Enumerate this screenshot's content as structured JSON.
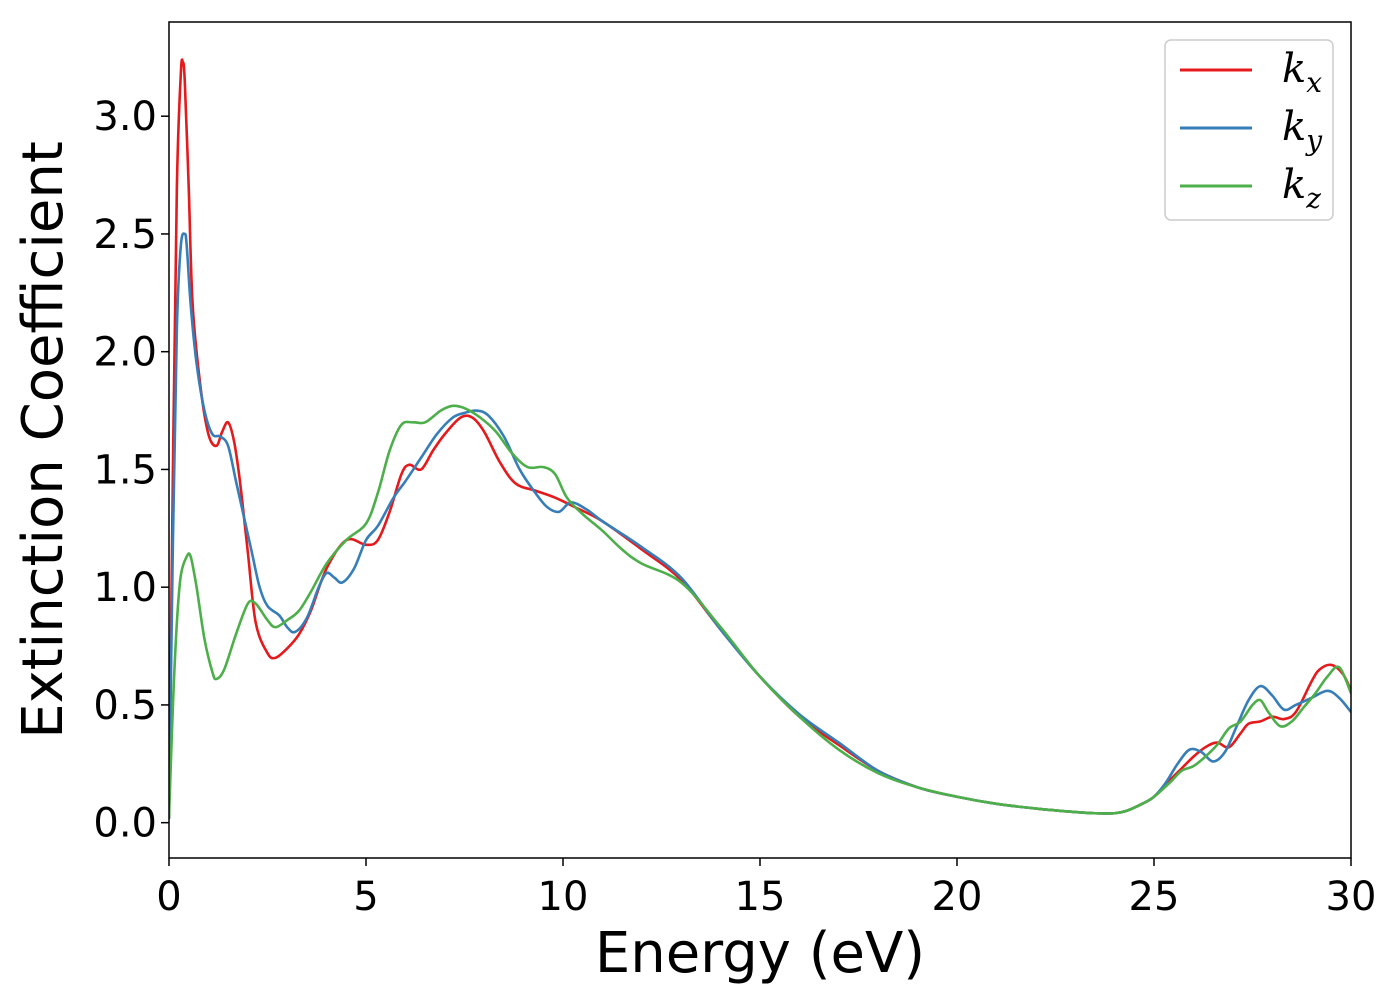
{
  "chart_data": {
    "type": "line",
    "xlabel": "Energy (eV)",
    "ylabel": "Extinction Coefficient",
    "xlim": [
      0,
      30
    ],
    "ylim": [
      -0.15,
      3.4
    ],
    "xticks": [
      0,
      5,
      10,
      15,
      20,
      25,
      30
    ],
    "xtick_labels": [
      "0",
      "5",
      "10",
      "15",
      "20",
      "25",
      "30"
    ],
    "yticks": [
      0.0,
      0.5,
      1.0,
      1.5,
      2.0,
      2.5,
      3.0
    ],
    "ytick_labels": [
      "0.0",
      "0.5",
      "1.0",
      "1.5",
      "2.0",
      "2.5",
      "3.0"
    ],
    "grid": false,
    "legend": "top-right",
    "series": [
      {
        "name": "k",
        "subscript": "x",
        "color": "#e41a1c",
        "x": [
          0,
          0.1,
          0.2,
          0.3,
          0.35,
          0.4,
          0.5,
          0.6,
          0.8,
          1.0,
          1.2,
          1.35,
          1.5,
          1.65,
          1.8,
          2.0,
          2.2,
          2.5,
          2.7,
          3.0,
          3.3,
          3.6,
          4.0,
          4.5,
          5.0,
          5.3,
          5.6,
          5.9,
          6.1,
          6.4,
          6.7,
          7.0,
          7.4,
          7.7,
          8.0,
          8.4,
          8.8,
          9.3,
          9.8,
          10.3,
          11.0,
          12.0,
          13.0,
          14.0,
          15.0,
          16.0,
          17.0,
          18.0,
          19.0,
          20.0,
          21.0,
          22.0,
          23.0,
          23.5,
          24.0,
          24.3,
          24.7,
          25.0,
          25.4,
          25.7,
          26.0,
          26.3,
          26.6,
          26.9,
          27.2,
          27.4,
          27.7,
          28.0,
          28.3,
          28.6,
          29.0,
          29.2,
          29.5,
          29.8,
          30.0
        ],
        "values": [
          0.02,
          1.5,
          2.7,
          3.18,
          3.23,
          3.15,
          2.7,
          2.2,
          1.85,
          1.65,
          1.6,
          1.66,
          1.7,
          1.62,
          1.45,
          1.15,
          0.85,
          0.72,
          0.7,
          0.74,
          0.8,
          0.9,
          1.08,
          1.2,
          1.18,
          1.2,
          1.32,
          1.48,
          1.52,
          1.5,
          1.58,
          1.65,
          1.72,
          1.72,
          1.66,
          1.53,
          1.44,
          1.41,
          1.38,
          1.34,
          1.28,
          1.16,
          1.03,
          0.82,
          0.62,
          0.45,
          0.33,
          0.22,
          0.15,
          0.11,
          0.08,
          0.06,
          0.045,
          0.04,
          0.04,
          0.05,
          0.08,
          0.11,
          0.18,
          0.23,
          0.28,
          0.32,
          0.34,
          0.32,
          0.38,
          0.42,
          0.43,
          0.45,
          0.44,
          0.47,
          0.6,
          0.65,
          0.67,
          0.63,
          0.56
        ]
      },
      {
        "name": "k",
        "subscript": "y",
        "color": "#377eb8",
        "x": [
          0,
          0.1,
          0.2,
          0.3,
          0.4,
          0.45,
          0.55,
          0.7,
          0.9,
          1.1,
          1.3,
          1.5,
          1.7,
          1.9,
          2.1,
          2.3,
          2.5,
          2.8,
          3.0,
          3.2,
          3.5,
          3.8,
          4.0,
          4.2,
          4.4,
          4.7,
          5.0,
          5.3,
          5.7,
          6.0,
          6.4,
          6.8,
          7.2,
          7.5,
          7.8,
          8.1,
          8.5,
          8.9,
          9.3,
          9.6,
          9.9,
          10.2,
          10.6,
          11.0,
          12.0,
          13.0,
          14.0,
          15.0,
          16.0,
          17.0,
          18.0,
          19.0,
          20.0,
          21.0,
          22.0,
          23.0,
          23.5,
          24.0,
          24.3,
          24.7,
          25.0,
          25.3,
          25.6,
          25.9,
          26.2,
          26.5,
          26.8,
          27.1,
          27.4,
          27.7,
          28.0,
          28.3,
          28.6,
          29.0,
          29.4,
          29.7,
          30.0
        ],
        "values": [
          0.02,
          1.2,
          2.1,
          2.45,
          2.5,
          2.45,
          2.2,
          1.95,
          1.75,
          1.65,
          1.64,
          1.6,
          1.45,
          1.3,
          1.15,
          1.0,
          0.92,
          0.88,
          0.83,
          0.81,
          0.87,
          1.0,
          1.06,
          1.04,
          1.02,
          1.08,
          1.2,
          1.26,
          1.38,
          1.45,
          1.55,
          1.65,
          1.72,
          1.74,
          1.75,
          1.73,
          1.64,
          1.5,
          1.4,
          1.34,
          1.32,
          1.36,
          1.33,
          1.28,
          1.17,
          1.04,
          0.82,
          0.62,
          0.46,
          0.34,
          0.22,
          0.15,
          0.11,
          0.08,
          0.06,
          0.045,
          0.04,
          0.04,
          0.05,
          0.08,
          0.11,
          0.17,
          0.25,
          0.31,
          0.3,
          0.26,
          0.3,
          0.41,
          0.52,
          0.58,
          0.54,
          0.48,
          0.5,
          0.53,
          0.56,
          0.53,
          0.47
        ]
      },
      {
        "name": "k",
        "subscript": "z",
        "color": "#4daf4a",
        "x": [
          0,
          0.1,
          0.2,
          0.3,
          0.45,
          0.55,
          0.7,
          0.9,
          1.1,
          1.2,
          1.4,
          1.7,
          2.0,
          2.2,
          2.5,
          2.7,
          3.0,
          3.3,
          3.6,
          4.0,
          4.5,
          5.0,
          5.3,
          5.6,
          5.9,
          6.2,
          6.5,
          6.9,
          7.2,
          7.5,
          7.9,
          8.3,
          8.7,
          9.1,
          9.5,
          9.8,
          10.1,
          10.5,
          11.0,
          11.5,
          12.0,
          13.0,
          14.0,
          15.0,
          16.0,
          17.0,
          18.0,
          19.0,
          20.0,
          21.0,
          22.0,
          23.0,
          23.5,
          24.0,
          24.3,
          24.7,
          25.0,
          25.4,
          25.7,
          26.0,
          26.3,
          26.6,
          26.9,
          27.2,
          27.5,
          27.7,
          27.9,
          28.2,
          28.5,
          28.8,
          29.1,
          29.4,
          29.7,
          30.0
        ],
        "values": [
          0.02,
          0.5,
          0.85,
          1.05,
          1.13,
          1.13,
          1.0,
          0.78,
          0.64,
          0.61,
          0.65,
          0.8,
          0.93,
          0.93,
          0.86,
          0.83,
          0.86,
          0.9,
          0.98,
          1.1,
          1.2,
          1.27,
          1.4,
          1.58,
          1.69,
          1.7,
          1.7,
          1.75,
          1.77,
          1.76,
          1.72,
          1.66,
          1.57,
          1.51,
          1.51,
          1.48,
          1.38,
          1.31,
          1.24,
          1.16,
          1.1,
          1.02,
          0.83,
          0.62,
          0.45,
          0.31,
          0.21,
          0.15,
          0.11,
          0.08,
          0.06,
          0.045,
          0.04,
          0.04,
          0.05,
          0.08,
          0.11,
          0.17,
          0.22,
          0.24,
          0.28,
          0.33,
          0.4,
          0.43,
          0.5,
          0.52,
          0.47,
          0.41,
          0.43,
          0.49,
          0.55,
          0.62,
          0.66,
          0.55
        ]
      }
    ]
  }
}
